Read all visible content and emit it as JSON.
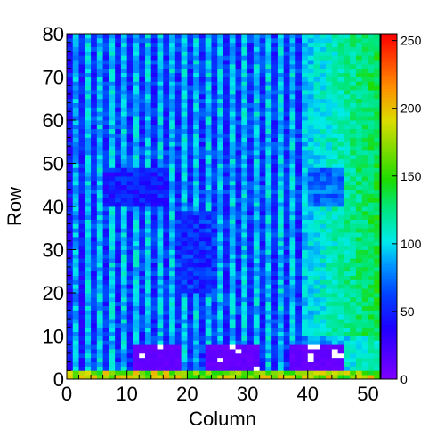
{
  "chart_data": {
    "type": "heatmap",
    "title": "",
    "xlabel": "Column",
    "ylabel": "Row",
    "xlim": [
      0,
      52
    ],
    "ylim": [
      0,
      80
    ],
    "x_ticks": [
      "0",
      "10",
      "20",
      "30",
      "40",
      "50"
    ],
    "y_ticks": [
      "0",
      "10",
      "20",
      "30",
      "40",
      "50",
      "60",
      "70",
      "80"
    ],
    "z_range": [
      0,
      255
    ],
    "colorbar_ticks": [
      "0",
      "50",
      "100",
      "150",
      "200",
      "250"
    ],
    "colormap": "rainbow",
    "grid": false,
    "legend_position": "right colorbar",
    "columns": 52,
    "rows": 80,
    "description_of_values": {
      "columns_0_to_38": "alternating columns with values ~40-75 (even) and ~85-110 (odd)",
      "rows_40_to_48_columns_6_to_16": "~45-55",
      "rows_20_to_38_columns_18_to_24": "~50-60",
      "columns_39_to_51": "~100-150, rising toward the right",
      "rows_40_to_48_columns_40_to_45": "~70-80",
      "row_0_to_1": "~150-200 along bottom edge",
      "purple_boxes_rows_2_to_7": "~8-12 in columns 11-18, 23-31, 37-45",
      "white_cells": "zero / empty bins inside the purple boxes"
    }
  }
}
